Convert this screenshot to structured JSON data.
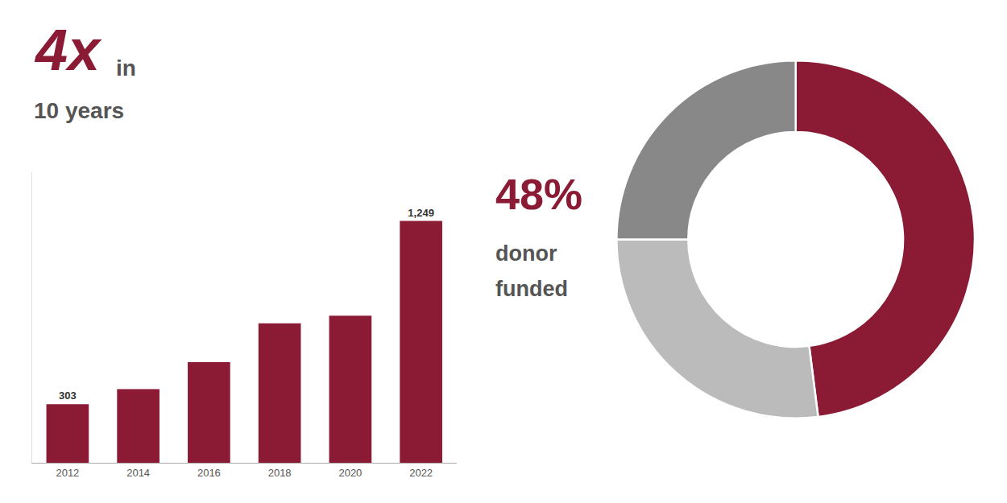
{
  "chart_data": [
    {
      "type": "bar",
      "categories": [
        "2012",
        "2014",
        "2016",
        "2018",
        "2020",
        "2022"
      ],
      "values": [
        303,
        380,
        520,
        720,
        760,
        1249
      ],
      "value_labels": [
        "303",
        null,
        null,
        null,
        null,
        "1,249"
      ],
      "color": "#8B1A35",
      "ylim": [
        0,
        1500
      ],
      "grid": false,
      "tick_labels": "x",
      "annotations": [
        {
          "text": "4x",
          "color": "#8B1A35"
        },
        {
          "text": "in",
          "color": "#555555"
        },
        {
          "text": "10 years",
          "color": "#555555"
        }
      ]
    },
    {
      "type": "donut",
      "values": [
        48,
        27,
        25
      ],
      "colors": [
        "#8B1A35",
        "#BBBBBB",
        "#888888"
      ],
      "annotations": [
        {
          "text": "48%",
          "color": "#8B1A35"
        },
        {
          "text": "donor",
          "color": "#555555"
        },
        {
          "text": "funded",
          "color": "#555555"
        }
      ]
    }
  ]
}
